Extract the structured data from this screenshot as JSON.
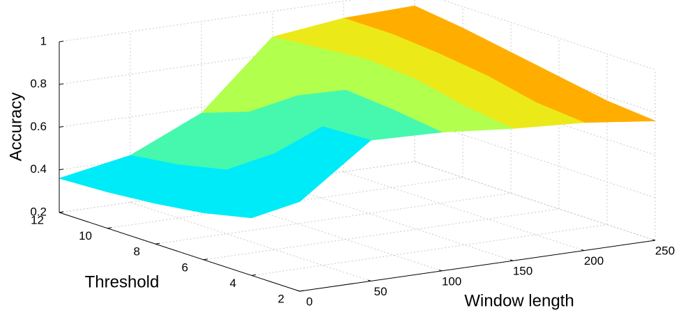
{
  "chart_data": {
    "type": "surface",
    "xlabel": "Window length",
    "ylabel": "Threshold",
    "zlabel": "Accuracy",
    "x": [
      0,
      50,
      100,
      150,
      200,
      250
    ],
    "y": [
      2,
      4,
      6,
      8,
      10,
      12
    ],
    "z": [
      [
        0.62,
        0.86,
        0.85,
        0.82,
        0.8,
        0.76
      ],
      [
        0.47,
        0.85,
        0.88,
        0.85,
        0.82,
        0.78
      ],
      [
        0.42,
        0.65,
        0.9,
        0.9,
        0.87,
        0.82
      ],
      [
        0.39,
        0.5,
        0.8,
        0.92,
        0.9,
        0.86
      ],
      [
        0.37,
        0.45,
        0.65,
        0.9,
        0.92,
        0.9
      ],
      [
        0.36,
        0.42,
        0.57,
        0.88,
        0.92,
        0.93
      ]
    ],
    "xlim": [
      0,
      250
    ],
    "ylim": [
      2,
      12
    ],
    "zlim": [
      0.2,
      1
    ],
    "xticks": [
      0,
      50,
      100,
      150,
      200,
      250
    ],
    "yticks": [
      2,
      4,
      6,
      8,
      10,
      12
    ],
    "zticks": [
      0.2,
      0.4,
      0.6,
      0.8,
      1
    ],
    "grid": true,
    "colormap": [
      "#00e5ff",
      "#00f0f0",
      "#8cff6a",
      "#d8ff30",
      "#ffd200",
      "#ff8a00"
    ]
  }
}
